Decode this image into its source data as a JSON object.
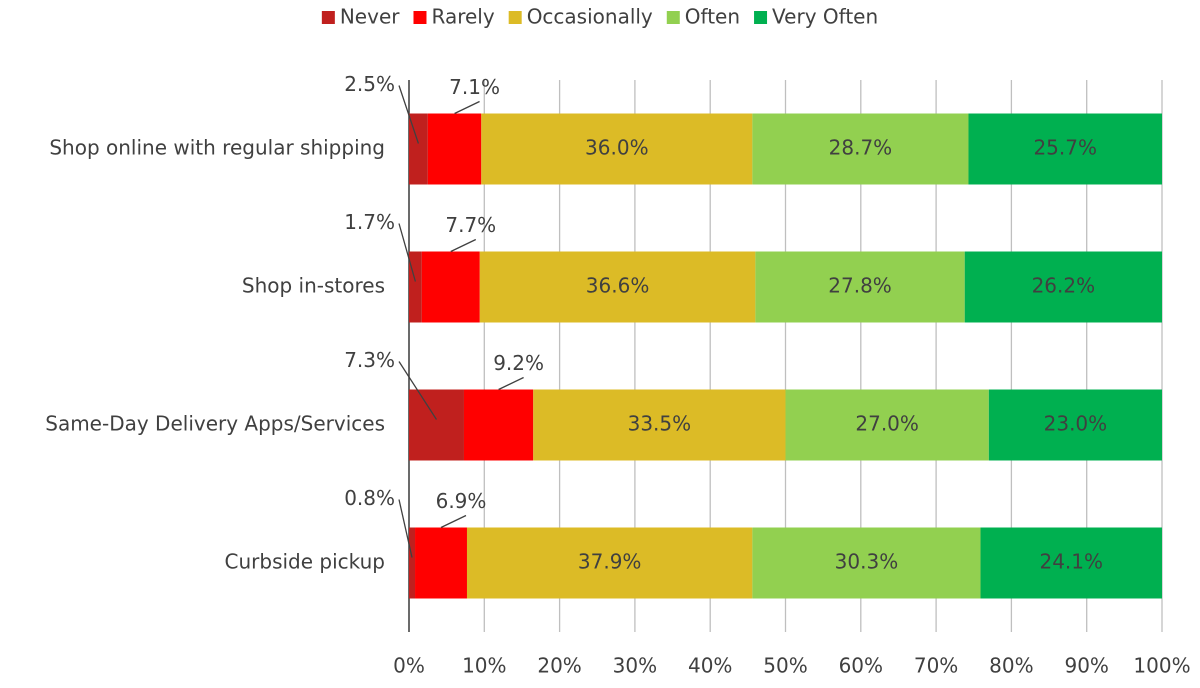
{
  "chart_data": {
    "type": "stacked_bar_horizontal",
    "categories": [
      "Shop online with regular shipping",
      "Shop in-stores",
      "Same-Day Delivery Apps/Services",
      "Curbside pickup"
    ],
    "series": [
      {
        "name": "Never",
        "color": "#c0201e",
        "values": [
          2.5,
          1.7,
          7.3,
          0.8
        ],
        "value_labels": [
          "2.5%",
          "1.7%",
          "7.3%",
          "0.8%"
        ]
      },
      {
        "name": "Rarely",
        "color": "#ff0000",
        "values": [
          7.1,
          7.7,
          9.2,
          6.9
        ],
        "value_labels": [
          "7.1%",
          "7.7%",
          "9.2%",
          "6.9%"
        ]
      },
      {
        "name": "Occasionally",
        "color": "#dcbb26",
        "values": [
          36.0,
          36.6,
          33.5,
          37.9
        ],
        "value_labels": [
          "36.0%",
          "36.6%",
          "33.5%",
          "37.9%"
        ]
      },
      {
        "name": "Often",
        "color": "#92d050",
        "values": [
          28.7,
          27.8,
          27.0,
          30.3
        ],
        "value_labels": [
          "28.7%",
          "27.8%",
          "27.0%",
          "30.3%"
        ]
      },
      {
        "name": "Very Often",
        "color": "#00b050",
        "values": [
          25.7,
          26.2,
          23.0,
          24.1
        ],
        "value_labels": [
          "25.7%",
          "26.2%",
          "23.0%",
          "24.1%"
        ]
      }
    ],
    "xlim": [
      0,
      100
    ],
    "xticks": [
      {
        "value": 0,
        "label": "0%"
      },
      {
        "value": 10,
        "label": "10%"
      },
      {
        "value": 20,
        "label": "20%"
      },
      {
        "value": 30,
        "label": "30%"
      },
      {
        "value": 40,
        "label": "40%"
      },
      {
        "value": 50,
        "label": "50%"
      },
      {
        "value": 60,
        "label": "60%"
      },
      {
        "value": 70,
        "label": "70%"
      },
      {
        "value": 80,
        "label": "80%"
      },
      {
        "value": 90,
        "label": "90%"
      },
      {
        "value": 100,
        "label": "100%"
      }
    ],
    "grid": true,
    "legend": "top"
  }
}
